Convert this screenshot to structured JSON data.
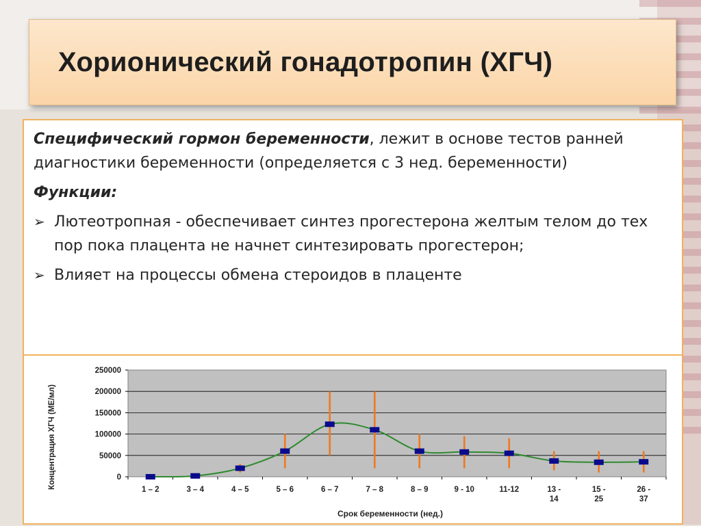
{
  "slide": {
    "title": "Хорионический гонадотропин (ХГЧ)",
    "intro_bold": "Специфический гормон беременности",
    "intro_rest": ", лежит в основе тестов ранней диагностики беременности (определяется с 3 нед. беременности)",
    "functions_label": "Функции:",
    "bullets": [
      "Лютеотропная -  обеспечивает синтез прогестерона желтым телом до тех пор пока плацента не начнет синтезировать прогестерон;",
      " Влияет на процессы обмена стероидов в плаценте"
    ]
  },
  "chart_data": {
    "type": "line",
    "xlabel": "Срок беременности (нед.)",
    "ylabel": "Концентрация ХГЧ (МЕ/мл)",
    "ylim": [
      0,
      250000
    ],
    "yticks": [
      "250000",
      "200000",
      "150000",
      "100000",
      "50000",
      "0"
    ],
    "categories": [
      [
        "1 – 2"
      ],
      [
        "3 – 4"
      ],
      [
        "4 – 5"
      ],
      [
        "5 – 6"
      ],
      [
        "6 – 7"
      ],
      [
        "7 – 8"
      ],
      [
        "8 – 9"
      ],
      [
        "9 - 10"
      ],
      [
        "11-12"
      ],
      [
        "13 -",
        "14"
      ],
      [
        "15 -",
        "25"
      ],
      [
        "26 -",
        "37"
      ]
    ],
    "values": [
      0,
      2000,
      20000,
      60000,
      123000,
      110000,
      60000,
      58000,
      55000,
      37000,
      34000,
      35000
    ],
    "error_low": [
      0,
      0,
      10000,
      20000,
      50000,
      20000,
      20000,
      20000,
      20000,
      15000,
      10000,
      10000
    ],
    "error_high": [
      0,
      5000,
      30000,
      100000,
      200000,
      200000,
      100000,
      95000,
      90000,
      60000,
      60000,
      60000
    ],
    "grid": true,
    "plot_background": "#c0c0c0",
    "line_color": "#2d8a2d",
    "marker_color": "#0a0a8c",
    "error_color": "#f07820"
  }
}
